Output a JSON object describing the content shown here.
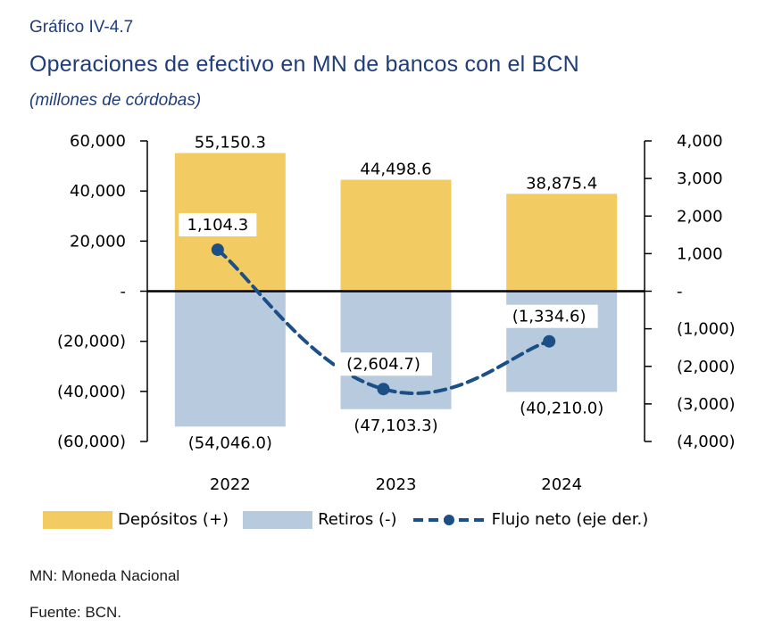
{
  "header": {
    "figure_number": "Gráfico IV-4.7",
    "title": "Operaciones de efectivo en MN de bancos con el BCN",
    "units": "(millones de córdobas)"
  },
  "chart_data": {
    "type": "bar",
    "categories": [
      "2022",
      "2023",
      "2024"
    ],
    "series": [
      {
        "name": "Depósitos (+)",
        "kind": "bar",
        "axis": "left",
        "color": "#f2cb62",
        "values": [
          55150.3,
          44498.6,
          38875.4
        ],
        "labels": [
          "55,150.3",
          "44,498.6",
          "38,875.4"
        ]
      },
      {
        "name": "Retiros (-)",
        "kind": "bar",
        "axis": "left",
        "color": "#b8cade",
        "values": [
          -54046.0,
          -47103.3,
          -40210.0
        ],
        "labels": [
          "(54,046.0)",
          "(47,103.3)",
          "(40,210.0)"
        ]
      },
      {
        "name": "Flujo neto (eje der.)",
        "kind": "line",
        "style": "dashed",
        "axis": "right",
        "color": "#1b4f86",
        "values": [
          1104.3,
          -2604.7,
          -1334.6
        ],
        "labels": [
          "1,104.3",
          "(2,604.7)",
          "(1,334.6)"
        ]
      }
    ],
    "y_left": {
      "ylim": [
        -60000,
        60000
      ],
      "ticks": [
        60000,
        40000,
        20000,
        0,
        -20000,
        -40000,
        -60000
      ],
      "tick_labels": [
        "60,000",
        "40,000",
        "20,000",
        "-",
        "(20,000)",
        "(40,000)",
        "(60,000)"
      ]
    },
    "y_right": {
      "ylim": [
        -4000,
        4000
      ],
      "ticks": [
        4000,
        3000,
        2000,
        1000,
        0,
        -1000,
        -2000,
        -3000,
        -4000
      ],
      "tick_labels": [
        "4,000",
        "3,000",
        "2,000",
        "1,000",
        "-",
        "(1,000)",
        "(2,000)",
        "(3,000)",
        "(4,000)"
      ]
    },
    "grid": false,
    "legend": "bottom"
  },
  "notes": {
    "abbrev": "MN: Moneda Nacional",
    "source": "Fuente: BCN."
  }
}
